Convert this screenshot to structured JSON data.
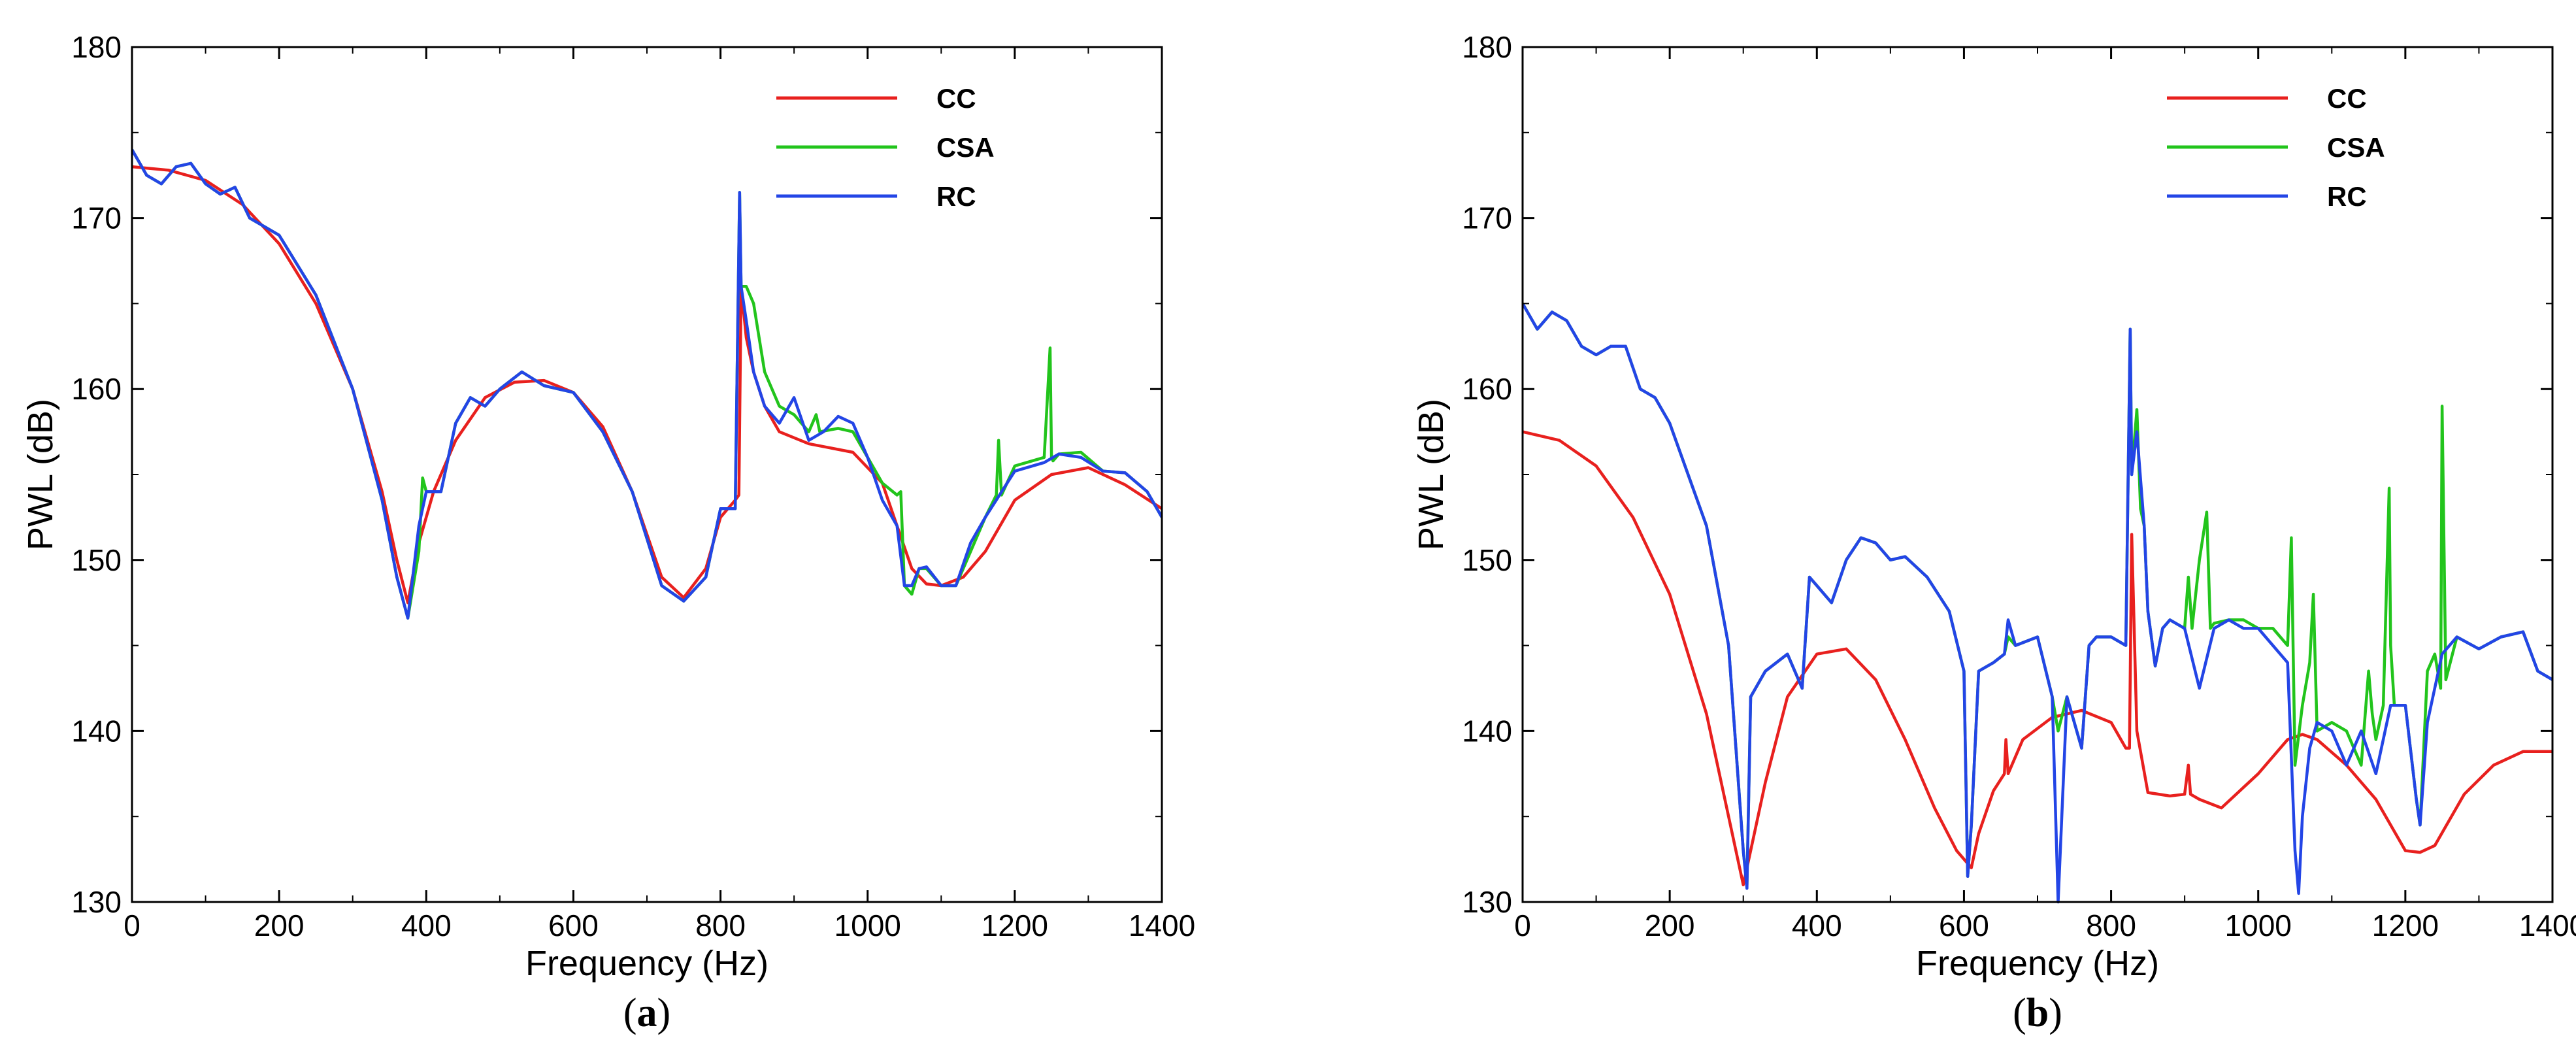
{
  "colors": {
    "CC": "#e8201e",
    "CSA": "#22c41c",
    "RC": "#2345e6",
    "axis": "#000000"
  },
  "panels": [
    {
      "label_open": "(",
      "label_letter": "a",
      "label_close": ")"
    },
    {
      "label_open": "(",
      "label_letter": "b",
      "label_close": ")"
    }
  ],
  "chart_data": [
    {
      "type": "line",
      "xlabel": "Frequency (Hz)",
      "ylabel": "PWL (dB)",
      "xlim": [
        0,
        1400
      ],
      "ylim": [
        130,
        180
      ],
      "xticks": [
        0,
        200,
        400,
        600,
        800,
        1000,
        1200,
        1400
      ],
      "yticks": [
        130,
        140,
        150,
        160,
        170,
        180
      ],
      "grid": false,
      "legend_position": "top-right",
      "series": [
        {
          "name": "CC",
          "x": [
            0,
            50,
            100,
            150,
            200,
            250,
            300,
            340,
            360,
            375,
            390,
            410,
            440,
            480,
            520,
            560,
            600,
            640,
            680,
            720,
            750,
            780,
            800,
            820,
            825,
            828,
            835,
            845,
            860,
            880,
            920,
            980,
            1020,
            1040,
            1060,
            1080,
            1100,
            1130,
            1160,
            1200,
            1250,
            1300,
            1350,
            1400
          ],
          "y": [
            173,
            172.8,
            172.2,
            170.8,
            168.5,
            165,
            160,
            154,
            150,
            147.5,
            151,
            154,
            157,
            159.5,
            160.4,
            160.5,
            159.8,
            157.8,
            154,
            149,
            147.8,
            149.5,
            152.5,
            153.5,
            153.8,
            166,
            163,
            161,
            159,
            157.5,
            156.8,
            156.3,
            154.5,
            152,
            149.5,
            148.6,
            148.5,
            149,
            150.5,
            153.5,
            155,
            155.4,
            154.4,
            153
          ]
        },
        {
          "name": "CSA",
          "x": [
            0,
            20,
            40,
            60,
            80,
            100,
            120,
            140,
            160,
            180,
            200,
            250,
            300,
            340,
            360,
            375,
            390,
            395,
            400,
            420,
            440,
            460,
            480,
            500,
            530,
            560,
            600,
            640,
            680,
            720,
            750,
            780,
            800,
            820,
            826,
            828,
            835,
            845,
            860,
            880,
            900,
            920,
            930,
            935,
            960,
            980,
            1000,
            1020,
            1040,
            1045,
            1050,
            1060,
            1070,
            1080,
            1100,
            1120,
            1140,
            1160,
            1175,
            1178,
            1182,
            1200,
            1240,
            1248,
            1250,
            1252,
            1260,
            1290,
            1320,
            1350,
            1380,
            1400
          ],
          "y": [
            174,
            172.5,
            172,
            173,
            173.2,
            172,
            171.4,
            171.8,
            170,
            169.5,
            169,
            165.5,
            160,
            153.5,
            149,
            146.6,
            150.5,
            154.8,
            154,
            154,
            158,
            159.5,
            159,
            160,
            161,
            160.2,
            159.8,
            157.5,
            154,
            148.5,
            147.6,
            149,
            153,
            153,
            171.5,
            166,
            166,
            165,
            161,
            159,
            158.5,
            157.5,
            158.5,
            157.5,
            157.7,
            157.5,
            156,
            154.5,
            153.8,
            154,
            148.5,
            148,
            149.5,
            149.5,
            148.5,
            148.5,
            150.5,
            152.5,
            153.8,
            157,
            153.8,
            155.5,
            156,
            162.4,
            156,
            155.8,
            156.2,
            156.3,
            155.2,
            155.1,
            154,
            152.5
          ]
        },
        {
          "name": "RC",
          "x": [
            0,
            20,
            40,
            60,
            80,
            100,
            120,
            140,
            160,
            180,
            200,
            250,
            300,
            340,
            360,
            375,
            390,
            400,
            420,
            440,
            460,
            480,
            500,
            530,
            560,
            600,
            640,
            680,
            720,
            750,
            780,
            800,
            820,
            826,
            828,
            835,
            845,
            860,
            880,
            900,
            920,
            940,
            960,
            980,
            1000,
            1020,
            1040,
            1050,
            1060,
            1070,
            1080,
            1100,
            1120,
            1140,
            1160,
            1200,
            1240,
            1260,
            1290,
            1320,
            1350,
            1380,
            1400
          ],
          "y": [
            174,
            172.5,
            172,
            173,
            173.2,
            172,
            171.4,
            171.8,
            170,
            169.5,
            169,
            165.5,
            160,
            153.5,
            149,
            146.6,
            152,
            154,
            154,
            158,
            159.5,
            159,
            160,
            161,
            160.2,
            159.8,
            157.5,
            154,
            148.5,
            147.6,
            149,
            153,
            153,
            171.5,
            166,
            164,
            161,
            159,
            158,
            159.5,
            157,
            157.5,
            158.4,
            158,
            156,
            153.5,
            152,
            148.5,
            148.5,
            149.5,
            149.6,
            148.5,
            148.5,
            151,
            152.5,
            155.2,
            155.7,
            156.2,
            156,
            155.2,
            155.1,
            154,
            152.5
          ]
        }
      ]
    },
    {
      "type": "line",
      "xlabel": "Frequency (Hz)",
      "ylabel": "PWL (dB)",
      "xlim": [
        0,
        1400
      ],
      "ylim": [
        130,
        180
      ],
      "xticks": [
        0,
        200,
        400,
        600,
        800,
        1000,
        1200,
        1400
      ],
      "yticks": [
        130,
        140,
        150,
        160,
        170,
        180
      ],
      "grid": false,
      "legend_position": "top-right",
      "series": [
        {
          "name": "CC",
          "x": [
            0,
            50,
            100,
            150,
            200,
            250,
            280,
            300,
            310,
            330,
            360,
            400,
            440,
            480,
            520,
            560,
            590,
            610,
            620,
            640,
            655,
            657,
            660,
            680,
            720,
            760,
            800,
            820,
            825,
            828,
            835,
            850,
            880,
            900,
            905,
            908,
            920,
            950,
            1000,
            1040,
            1060,
            1080,
            1120,
            1160,
            1200,
            1220,
            1240,
            1280,
            1320,
            1360,
            1400
          ],
          "y": [
            157.5,
            157,
            155.5,
            152.5,
            148,
            141,
            135,
            131,
            133,
            137,
            142,
            144.5,
            144.8,
            143,
            139.5,
            135.5,
            133,
            132,
            134,
            136.5,
            137.5,
            139.5,
            137.5,
            139.5,
            140.8,
            141.2,
            140.5,
            139,
            139,
            151.5,
            140,
            136.4,
            136.2,
            136.3,
            138,
            136.3,
            136,
            135.5,
            137.5,
            139.5,
            139.8,
            139.5,
            138,
            136,
            133,
            132.9,
            133.3,
            136.3,
            138,
            138.8,
            138.8
          ]
        },
        {
          "name": "CSA",
          "x": [
            0,
            20,
            40,
            60,
            80,
            100,
            120,
            140,
            160,
            180,
            200,
            250,
            280,
            300,
            305,
            310,
            330,
            360,
            380,
            390,
            400,
            420,
            440,
            460,
            480,
            500,
            520,
            550,
            580,
            600,
            605,
            610,
            620,
            640,
            655,
            660,
            670,
            700,
            720,
            728,
            740,
            760,
            770,
            780,
            800,
            820,
            826,
            828,
            835,
            840,
            845,
            850,
            860,
            870,
            880,
            900,
            905,
            910,
            920,
            930,
            935,
            940,
            960,
            980,
            1000,
            1020,
            1040,
            1045,
            1050,
            1060,
            1070,
            1075,
            1080,
            1100,
            1120,
            1140,
            1150,
            1155,
            1160,
            1170,
            1178,
            1180,
            1185,
            1200,
            1215,
            1220,
            1230,
            1240,
            1248,
            1250,
            1255,
            1270,
            1300,
            1330,
            1360,
            1380,
            1400
          ],
          "y": [
            165,
            163.5,
            164.5,
            164,
            162.5,
            162,
            162.5,
            162.5,
            160,
            159.5,
            158,
            152,
            145,
            133,
            131,
            142,
            143.5,
            144.5,
            142.5,
            149,
            148.5,
            147.5,
            150,
            151.3,
            151,
            150,
            150.2,
            149,
            147,
            143.5,
            131.5,
            134.5,
            143.5,
            144,
            144.5,
            145.5,
            145,
            145.5,
            142,
            140,
            142,
            139,
            145,
            145.5,
            145.5,
            145,
            163.5,
            155,
            158.8,
            153,
            152,
            147,
            143.8,
            146,
            146.5,
            146,
            149,
            146,
            150,
            152.8,
            146,
            146.3,
            146.5,
            146.5,
            146,
            146,
            145,
            151.3,
            138,
            141.5,
            144,
            148,
            140,
            140.5,
            140,
            138,
            143.5,
            141,
            139.5,
            141.5,
            154.2,
            145,
            141.5,
            141.5,
            136,
            134.5,
            143.5,
            144.5,
            142.5,
            159,
            143,
            145.5,
            144.8,
            145.5,
            145.8,
            143.5,
            143
          ]
        },
        {
          "name": "RC",
          "x": [
            0,
            20,
            40,
            60,
            80,
            100,
            120,
            140,
            160,
            180,
            200,
            250,
            280,
            300,
            305,
            310,
            330,
            360,
            380,
            390,
            400,
            420,
            440,
            460,
            480,
            500,
            520,
            550,
            580,
            600,
            605,
            610,
            620,
            640,
            655,
            660,
            670,
            700,
            720,
            728,
            740,
            760,
            770,
            780,
            800,
            820,
            826,
            828,
            835,
            845,
            850,
            860,
            870,
            880,
            900,
            920,
            940,
            960,
            980,
            1000,
            1020,
            1040,
            1050,
            1055,
            1060,
            1070,
            1080,
            1100,
            1120,
            1140,
            1160,
            1180,
            1200,
            1215,
            1220,
            1230,
            1250,
            1270,
            1300,
            1330,
            1360,
            1380,
            1400
          ],
          "y": [
            165,
            163.5,
            164.5,
            164,
            162.5,
            162,
            162.5,
            162.5,
            160,
            159.5,
            158,
            152,
            145,
            133,
            130.8,
            142,
            143.5,
            144.5,
            142.5,
            149,
            148.5,
            147.5,
            150,
            151.3,
            151,
            150,
            150.2,
            149,
            147,
            143.5,
            131.5,
            134.5,
            143.5,
            144,
            144.5,
            146.5,
            145,
            145.5,
            142,
            130,
            142,
            139,
            145,
            145.5,
            145.5,
            145,
            163.5,
            155,
            157.5,
            152,
            147,
            143.8,
            146,
            146.5,
            146,
            142.5,
            146,
            146.5,
            146,
            146,
            145,
            144,
            133,
            130.5,
            135,
            139,
            140.5,
            140,
            138,
            140,
            137.5,
            141.5,
            141.5,
            136,
            134.5,
            140.5,
            144.5,
            145.5,
            144.8,
            145.5,
            145.8,
            143.5,
            143
          ]
        }
      ]
    }
  ]
}
